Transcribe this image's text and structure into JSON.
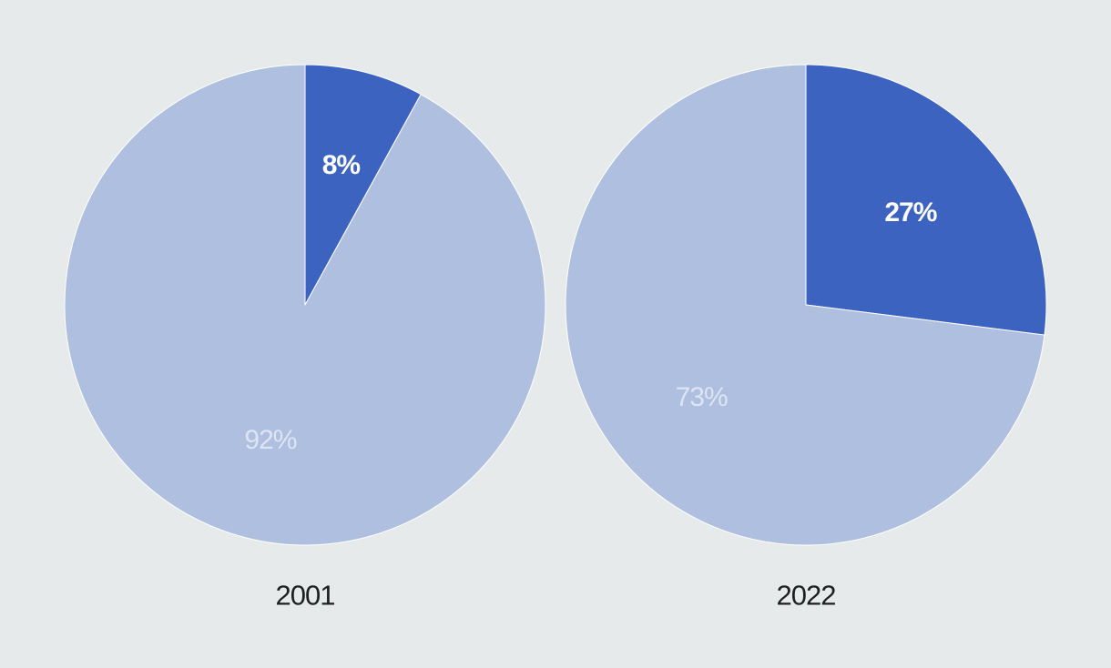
{
  "chart_data": [
    {
      "type": "pie",
      "title": "2001",
      "slices": [
        {
          "label": "8%",
          "value": 8,
          "color": "#3c63c0",
          "label_color": "#ffffff",
          "emphasis": true
        },
        {
          "label": "92%",
          "value": 92,
          "color": "#aebfe0",
          "label_color": "#dde5f3",
          "emphasis": false
        }
      ]
    },
    {
      "type": "pie",
      "title": "2022",
      "slices": [
        {
          "label": "27%",
          "value": 27,
          "color": "#3c63c0",
          "label_color": "#ffffff",
          "emphasis": true
        },
        {
          "label": "73%",
          "value": 73,
          "color": "#aebfe0",
          "label_color": "#dde5f3",
          "emphasis": false
        }
      ]
    }
  ],
  "theme": {
    "background": "#e6eaeb",
    "caption_color": "#1f1f1f",
    "slice_border": "#ffffff"
  }
}
